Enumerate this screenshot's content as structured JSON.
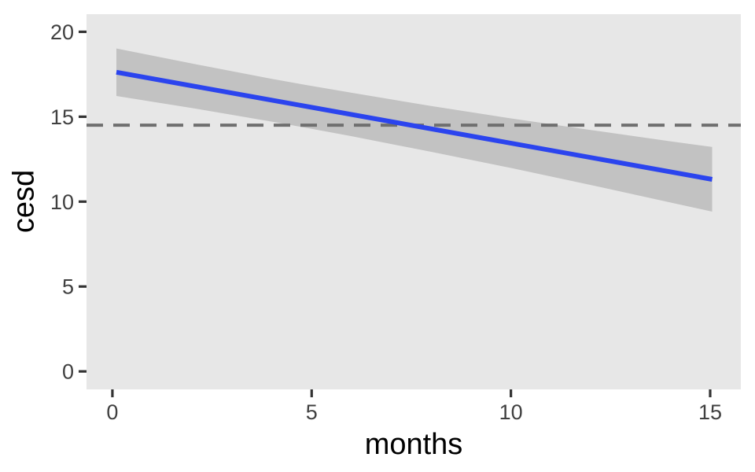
{
  "chart_data": {
    "type": "line",
    "title": "",
    "xlabel": "months",
    "ylabel": "cesd",
    "x_ticks": [
      0,
      5,
      10,
      15
    ],
    "y_ticks": [
      0,
      5,
      10,
      15,
      20
    ],
    "xlim": [
      -0.65,
      15.77
    ],
    "ylim": [
      -1.06,
      21.04
    ],
    "grid": false,
    "legend": false,
    "colors": {
      "panel_background": "#E7E7E7",
      "band_fill": "#C2C2C2",
      "line_blue": "#2B44EE",
      "dashed_gray": "#6F6F6F",
      "tick_mark": "#333333",
      "tick_label": "#404040",
      "axis_title": "#000000"
    },
    "reference_line": {
      "y": 14.5,
      "style": "dashed"
    },
    "regression_line": {
      "x": [
        0.1,
        15.05
      ],
      "y": [
        17.62,
        11.31
      ]
    },
    "confidence_band": {
      "x": [
        0.1,
        2,
        4,
        5,
        6,
        8,
        10,
        12,
        14,
        15.05
      ],
      "upper": [
        19.02,
        18.13,
        17.23,
        16.81,
        16.41,
        15.63,
        14.9,
        14.22,
        13.55,
        13.22
      ],
      "lower": [
        16.22,
        15.51,
        14.71,
        14.29,
        13.85,
        12.93,
        11.98,
        10.98,
        9.95,
        9.41
      ]
    }
  }
}
